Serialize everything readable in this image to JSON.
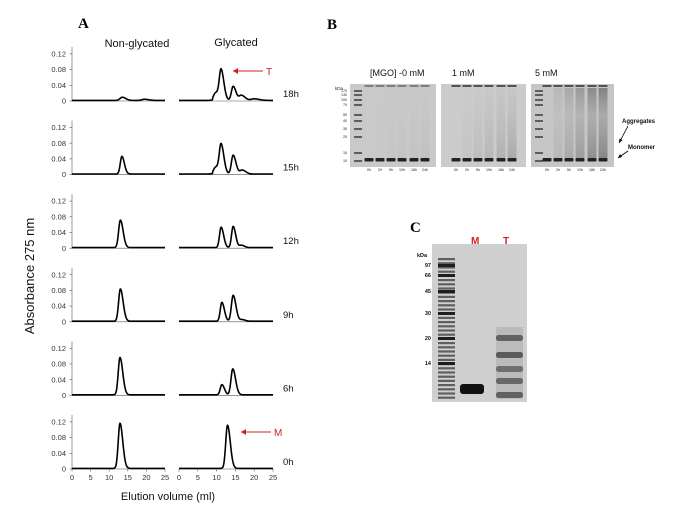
{
  "panel_a": {
    "letter": "A",
    "col_labels": [
      "Non-glycated",
      "Glycated"
    ],
    "ylabel": "Absorbance 275 nm",
    "xlabel": "Elution volume (ml)",
    "xticks": [
      "0",
      "5",
      "10",
      "15",
      "20",
      "25"
    ],
    "yticks": [
      "0",
      "0.04",
      "0.08",
      "0.12"
    ],
    "times": [
      "18h",
      "15h",
      "12h",
      "9h",
      "6h",
      "0h"
    ],
    "annot_t": "T",
    "annot_m": "M",
    "color_line": "#000000",
    "color_annot": "#d42020"
  },
  "chart_data": {
    "type": "line",
    "xlabel": "Elution volume (ml)",
    "ylabel": "Absorbance 275 nm",
    "xlim": [
      0,
      25
    ],
    "ylim": [
      0,
      0.14
    ],
    "rows": [
      {
        "time": "18h",
        "nonglycated": [
          {
            "c": 13.5,
            "h": 0.008,
            "w": 0.7
          },
          {
            "c": 19.5,
            "h": 0.003,
            "w": 0.8
          }
        ],
        "glycated": [
          {
            "c": 11.2,
            "h": 0.074,
            "w": 0.55
          },
          {
            "c": 9.8,
            "h": 0.02,
            "w": 0.7
          },
          {
            "c": 14.4,
            "h": 0.036,
            "w": 0.55
          },
          {
            "c": 16.6,
            "h": 0.013,
            "w": 0.7
          },
          {
            "c": 20,
            "h": 0.004,
            "w": 1
          }
        ]
      },
      {
        "time": "15h",
        "nonglycated": [
          {
            "c": 13.4,
            "h": 0.045,
            "w": 0.5
          }
        ],
        "glycated": [
          {
            "c": 11.2,
            "h": 0.072,
            "w": 0.55
          },
          {
            "c": 9.8,
            "h": 0.018,
            "w": 0.7
          },
          {
            "c": 14.4,
            "h": 0.048,
            "w": 0.55
          },
          {
            "c": 16.8,
            "h": 0.01,
            "w": 0.7
          }
        ]
      },
      {
        "time": "12h",
        "nonglycated": [
          {
            "c": 13.0,
            "h": 0.07,
            "w": 0.55
          }
        ],
        "glycated": [
          {
            "c": 11.2,
            "h": 0.052,
            "w": 0.5
          },
          {
            "c": 14.4,
            "h": 0.054,
            "w": 0.5
          },
          {
            "c": 16.6,
            "h": 0.006,
            "w": 0.6
          }
        ]
      },
      {
        "time": "9h",
        "nonglycated": [
          {
            "c": 13.0,
            "h": 0.082,
            "w": 0.55
          }
        ],
        "glycated": [
          {
            "c": 11.4,
            "h": 0.048,
            "w": 0.5
          },
          {
            "c": 14.4,
            "h": 0.066,
            "w": 0.55
          },
          {
            "c": 16.8,
            "h": 0.004,
            "w": 0.6
          }
        ]
      },
      {
        "time": "6h",
        "nonglycated": [
          {
            "c": 12.9,
            "h": 0.095,
            "w": 0.55
          }
        ],
        "glycated": [
          {
            "c": 11.4,
            "h": 0.026,
            "w": 0.5
          },
          {
            "c": 14.3,
            "h": 0.066,
            "w": 0.55
          }
        ]
      },
      {
        "time": "0h",
        "nonglycated": [
          {
            "c": 12.9,
            "h": 0.115,
            "w": 0.55
          }
        ],
        "glycated": [
          {
            "c": 12.9,
            "h": 0.11,
            "w": 0.55
          }
        ]
      }
    ]
  },
  "panel_b": {
    "letter": "B",
    "labels": [
      "[MGO] -0 mM",
      "1 mM",
      "5 mM"
    ],
    "kda": "kDa",
    "markers": [
      "170",
      "130",
      "100",
      "70",
      "55",
      "40",
      "35",
      "25",
      "15",
      "10"
    ],
    "lanes": [
      "0h",
      "2h",
      "5h",
      "10h",
      "18h",
      "24h"
    ],
    "aggregates": "Aggregates",
    "monomer": "Monomer",
    "color_gel": "#c9c9c9"
  },
  "panel_c": {
    "letter": "C",
    "kda": "kDa",
    "markers": [
      "97",
      "66",
      "45",
      "30",
      "20",
      "14"
    ],
    "lane_m": "M",
    "lane_t": "T",
    "color_gel": "#cfcfcf",
    "color_red": "#d42020"
  }
}
